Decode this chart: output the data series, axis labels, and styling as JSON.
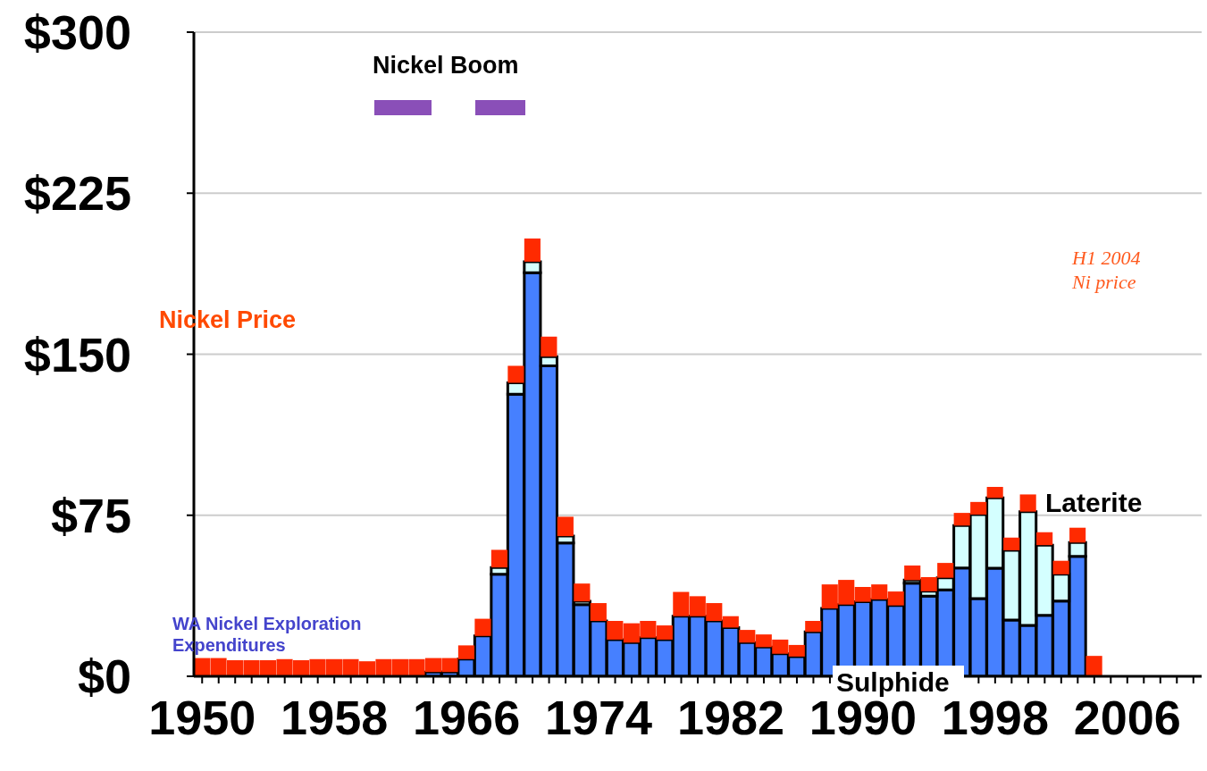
{
  "chart_data": {
    "type": "bar",
    "stacked": true,
    "x": [
      1950,
      1951,
      1952,
      1953,
      1954,
      1955,
      1956,
      1957,
      1958,
      1959,
      1960,
      1961,
      1962,
      1963,
      1964,
      1965,
      1966,
      1967,
      1968,
      1969,
      1970,
      1971,
      1972,
      1973,
      1974,
      1975,
      1976,
      1977,
      1978,
      1979,
      1980,
      1981,
      1982,
      1983,
      1984,
      1985,
      1986,
      1987,
      1988,
      1989,
      1990,
      1991,
      1992,
      1993,
      1994,
      1995,
      1996,
      1997,
      1998,
      1999,
      2000,
      2001,
      2002,
      2003,
      2004
    ],
    "series": [
      {
        "name": "Sulphide",
        "color": "#4680ff",
        "values": [
          0,
          0,
          0,
          0,
          0,
          0,
          0,
          0,
          0,
          0,
          0,
          0,
          0,
          0,
          2,
          2,
          8,
          18.8,
          47.5,
          131.4,
          188,
          144.6,
          62.1,
          33.4,
          25.8,
          17.1,
          15.7,
          18,
          17.1,
          28,
          28,
          25.8,
          22.7,
          15.7,
          13.6,
          10.5,
          9.2,
          20.7,
          31.6,
          33.4,
          34.7,
          35.8,
          33,
          43.4,
          37.3,
          40.3,
          50.4,
          36.2,
          50.3,
          26.2,
          23.7,
          28.4,
          35.1,
          55.9,
          0
        ]
      },
      {
        "name": "Laterite",
        "color": "#d4ffff",
        "values": [
          0,
          0,
          0,
          0,
          0,
          0,
          0,
          0,
          0,
          0,
          0,
          0,
          0,
          0,
          0,
          0,
          0,
          0,
          3.2,
          5.3,
          5.1,
          4.3,
          3.2,
          1.5,
          0,
          0,
          0,
          0,
          0,
          0,
          0,
          0,
          0,
          0,
          0,
          0,
          0,
          0,
          0,
          0,
          0,
          0,
          0,
          1.4,
          2.3,
          5.6,
          19.8,
          39.1,
          32.8,
          32.5,
          53,
          32.7,
          12.4,
          6.4,
          0
        ]
      },
      {
        "name": "Nickel Price",
        "color": "#ff2a00",
        "values": [
          8.5,
          8.5,
          7.5,
          7.5,
          7.5,
          8,
          7.5,
          8,
          8,
          8,
          7,
          8,
          8,
          8,
          6.5,
          6.5,
          6.4,
          8,
          8.2,
          7.9,
          10.8,
          9.3,
          9,
          8.3,
          8.3,
          8.7,
          9,
          7.8,
          6.6,
          11.3,
          9.3,
          8.3,
          5.3,
          5.9,
          5.9,
          6.6,
          5.4,
          5.1,
          11.2,
          11.5,
          6.9,
          7,
          6.5,
          6.8,
          6.6,
          6.9,
          5.9,
          5.9,
          5.1,
          5.9,
          8,
          6,
          6.3,
          6.9,
          9.5
        ]
      }
    ],
    "xlim": [
      1949.5,
      2010.5
    ],
    "xticks": [
      1950,
      {
        "value": 1951,
        "label": null
      },
      {
        "value": 1952,
        "label": null
      },
      {
        "value": 1953,
        "label": null
      },
      {
        "value": 1954,
        "label": null
      },
      {
        "value": 1955,
        "label": null
      },
      {
        "value": 1956,
        "label": null
      },
      {
        "value": 1957,
        "label": null
      },
      1958,
      {
        "value": 1959,
        "label": null
      },
      {
        "value": 1960,
        "label": null
      },
      {
        "value": 1961,
        "label": null
      },
      {
        "value": 1962,
        "label": null
      },
      {
        "value": 1963,
        "label": null
      },
      {
        "value": 1964,
        "label": null
      },
      {
        "value": 1965,
        "label": null
      },
      1966,
      {
        "value": 1967,
        "label": null
      },
      {
        "value": 1968,
        "label": null
      },
      {
        "value": 1969,
        "label": null
      },
      {
        "value": 1970,
        "label": null
      },
      {
        "value": 1971,
        "label": null
      },
      {
        "value": 1972,
        "label": null
      },
      {
        "value": 1973,
        "label": null
      },
      1974,
      {
        "value": 1975,
        "label": null
      },
      {
        "value": 1976,
        "label": null
      },
      {
        "value": 1977,
        "label": null
      },
      {
        "value": 1978,
        "label": null
      },
      {
        "value": 1979,
        "label": null
      },
      {
        "value": 1980,
        "label": null
      },
      {
        "value": 1981,
        "label": null
      },
      1982,
      {
        "value": 1983,
        "label": null
      },
      {
        "value": 1984,
        "label": null
      },
      {
        "value": 1985,
        "label": null
      },
      {
        "value": 1986,
        "label": null
      },
      {
        "value": 1987,
        "label": null
      },
      {
        "value": 1988,
        "label": null
      },
      {
        "value": 1989,
        "label": null
      },
      1990,
      {
        "value": 1991,
        "label": null
      },
      {
        "value": 1992,
        "label": null
      },
      {
        "value": 1993,
        "label": null
      },
      {
        "value": 1994,
        "label": null
      },
      {
        "value": 1995,
        "label": null
      },
      {
        "value": 1996,
        "label": null
      },
      {
        "value": 1997,
        "label": null
      },
      1998,
      {
        "value": 1999,
        "label": null
      },
      {
        "value": 2000,
        "label": null
      },
      {
        "value": 2001,
        "label": null
      },
      {
        "value": 2002,
        "label": null
      },
      {
        "value": 2003,
        "label": null
      },
      {
        "value": 2004,
        "label": null
      },
      {
        "value": 2005,
        "label": null
      },
      2006,
      {
        "value": 2007,
        "label": null
      },
      {
        "value": 2008,
        "label": null
      },
      {
        "value": 2009,
        "label": null
      },
      {
        "value": 2010,
        "label": null
      }
    ],
    "ylim": [
      0,
      300
    ],
    "yticks": [
      {
        "value": 0,
        "label": "$0"
      },
      {
        "value": 75,
        "label": "$75"
      },
      {
        "value": 150,
        "label": "$150"
      },
      {
        "value": 225,
        "label": "$225"
      },
      {
        "value": 300,
        "label": "$300"
      }
    ],
    "grid": "y",
    "legend": false,
    "annotations": [
      "Nickel Boom",
      "WA Nickel Exploration\nExpenditures",
      "H1 2004\nNi price"
    ]
  }
}
